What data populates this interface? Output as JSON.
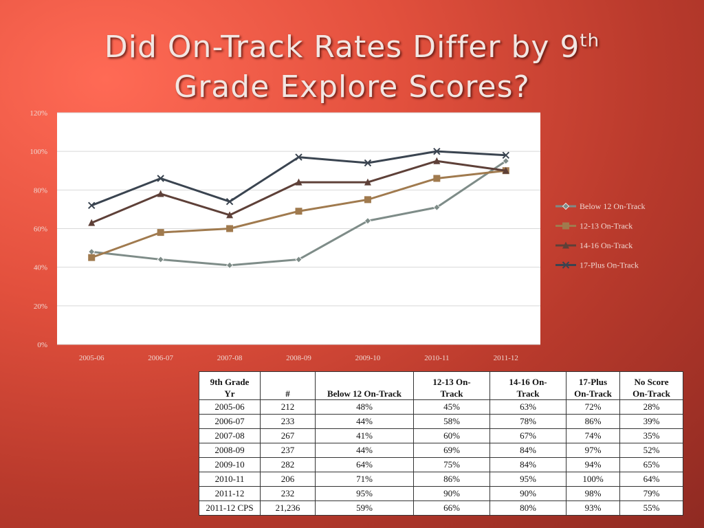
{
  "slide": {
    "title_line1_main": "Did On-Track Rates Differ by 9",
    "title_line1_sup": "th",
    "title_line2": "Grade Explore Scores?"
  },
  "colors": {
    "below12": "#7e8c88",
    "s1213": "#a07a4e",
    "s1416": "#5e4038",
    "s17plus": "#3a4450",
    "legend_text": "#f0d8d2",
    "axis_text": "#f0d8d2"
  },
  "chart_data": {
    "type": "line",
    "categories": [
      "2005-06",
      "2006-07",
      "2007-08",
      "2008-09",
      "2009-10",
      "2010-11",
      "2011-12"
    ],
    "ylim": [
      0,
      120
    ],
    "yticks": [
      "0%",
      "20%",
      "40%",
      "60%",
      "80%",
      "100%",
      "120%"
    ],
    "grid": true,
    "legend_position": "right",
    "series": [
      {
        "name": "Below 12 On-Track",
        "marker": "diamond",
        "values": [
          48,
          44,
          41,
          44,
          64,
          71,
          95
        ]
      },
      {
        "name": "12-13 On-Track",
        "marker": "square",
        "values": [
          45,
          58,
          60,
          69,
          75,
          86,
          90
        ]
      },
      {
        "name": "14-16 On-Track",
        "marker": "triangle",
        "values": [
          63,
          78,
          67,
          84,
          84,
          95,
          90
        ]
      },
      {
        "name": "17-Plus On-Track",
        "marker": "x",
        "values": [
          72,
          86,
          74,
          97,
          94,
          100,
          98
        ]
      }
    ]
  },
  "table": {
    "headers": [
      [
        "9th Grade",
        "Yr"
      ],
      [
        "",
        "#"
      ],
      [
        "",
        "Below 12 On-Track"
      ],
      [
        "12-13 On-",
        "Track"
      ],
      [
        "14-16 On-",
        "Track"
      ],
      [
        "17-Plus",
        "On-Track"
      ],
      [
        "No Score",
        "On-Track"
      ]
    ],
    "rows": [
      [
        "2005-06",
        "212",
        "48%",
        "45%",
        "63%",
        "72%",
        "28%"
      ],
      [
        "2006-07",
        "233",
        "44%",
        "58%",
        "78%",
        "86%",
        "39%"
      ],
      [
        "2007-08",
        "267",
        "41%",
        "60%",
        "67%",
        "74%",
        "35%"
      ],
      [
        "2008-09",
        "237",
        "44%",
        "69%",
        "84%",
        "97%",
        "52%"
      ],
      [
        "2009-10",
        "282",
        "64%",
        "75%",
        "84%",
        "94%",
        "65%"
      ],
      [
        "2010-11",
        "206",
        "71%",
        "86%",
        "95%",
        "100%",
        "64%"
      ],
      [
        "2011-12",
        "232",
        "95%",
        "90%",
        "90%",
        "98%",
        "79%"
      ],
      [
        "2011-12 CPS",
        "21,236",
        "59%",
        "66%",
        "80%",
        "93%",
        "55%"
      ]
    ]
  }
}
